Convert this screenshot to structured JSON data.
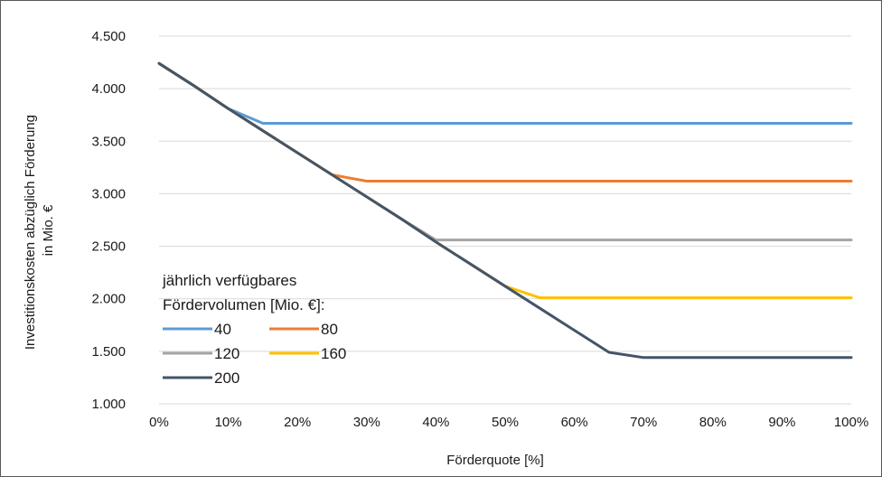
{
  "chart_data": {
    "type": "line",
    "xlabel": "Förderquote [%]",
    "ylabel_lines": [
      "Investitionskosten abzüglich Förderung",
      "in Mio. €"
    ],
    "x": [
      0,
      5,
      10,
      15,
      20,
      25,
      30,
      35,
      40,
      45,
      50,
      55,
      60,
      65,
      70,
      75,
      80,
      85,
      90,
      95,
      100
    ],
    "x_ticks": [
      0,
      10,
      20,
      30,
      40,
      50,
      60,
      70,
      80,
      90,
      100
    ],
    "x_tick_labels": [
      "0%",
      "10%",
      "20%",
      "30%",
      "40%",
      "50%",
      "60%",
      "70%",
      "80%",
      "90%",
      "100%"
    ],
    "y_ticks": [
      1000,
      1500,
      2000,
      2500,
      3000,
      3500,
      4000,
      4500
    ],
    "y_tick_labels": [
      "1.000",
      "1.500",
      "2.000",
      "2.500",
      "3.000",
      "3.500",
      "4.000",
      "4.500"
    ],
    "ylim": [
      1000,
      4500
    ],
    "xlim": [
      0,
      100
    ],
    "grid": "horizontal",
    "legend": {
      "title_lines": [
        "jährlich verfügbares",
        "Fördervolumen [Mio. €]:"
      ],
      "placement": "bottom-left"
    },
    "series": [
      {
        "name": "40",
        "color": "#5b9bd5",
        "values": [
          4240,
          4030,
          3810,
          3670,
          3670,
          3670,
          3670,
          3670,
          3670,
          3670,
          3670,
          3670,
          3670,
          3670,
          3670,
          3670,
          3670,
          3670,
          3670,
          3670,
          3670
        ]
      },
      {
        "name": "80",
        "color": "#ed7d31",
        "values": [
          4240,
          4030,
          3810,
          3600,
          3390,
          3180,
          3120,
          3120,
          3120,
          3120,
          3120,
          3120,
          3120,
          3120,
          3120,
          3120,
          3120,
          3120,
          3120,
          3120,
          3120
        ]
      },
      {
        "name": "120",
        "color": "#a5a5a5",
        "values": [
          4240,
          4030,
          3810,
          3600,
          3390,
          3180,
          2970,
          2760,
          2560,
          2560,
          2560,
          2560,
          2560,
          2560,
          2560,
          2560,
          2560,
          2560,
          2560,
          2560,
          2560
        ]
      },
      {
        "name": "160",
        "color": "#ffc000",
        "values": [
          4240,
          4030,
          3810,
          3600,
          3390,
          3180,
          2970,
          2760,
          2540,
          2330,
          2120,
          2010,
          2010,
          2010,
          2010,
          2010,
          2010,
          2010,
          2010,
          2010,
          2010
        ]
      },
      {
        "name": "200",
        "color": "#44546a",
        "values": [
          4240,
          4030,
          3810,
          3600,
          3390,
          3180,
          2970,
          2760,
          2540,
          2330,
          2120,
          1910,
          1700,
          1490,
          1440,
          1440,
          1440,
          1440,
          1440,
          1440,
          1440
        ]
      }
    ]
  }
}
